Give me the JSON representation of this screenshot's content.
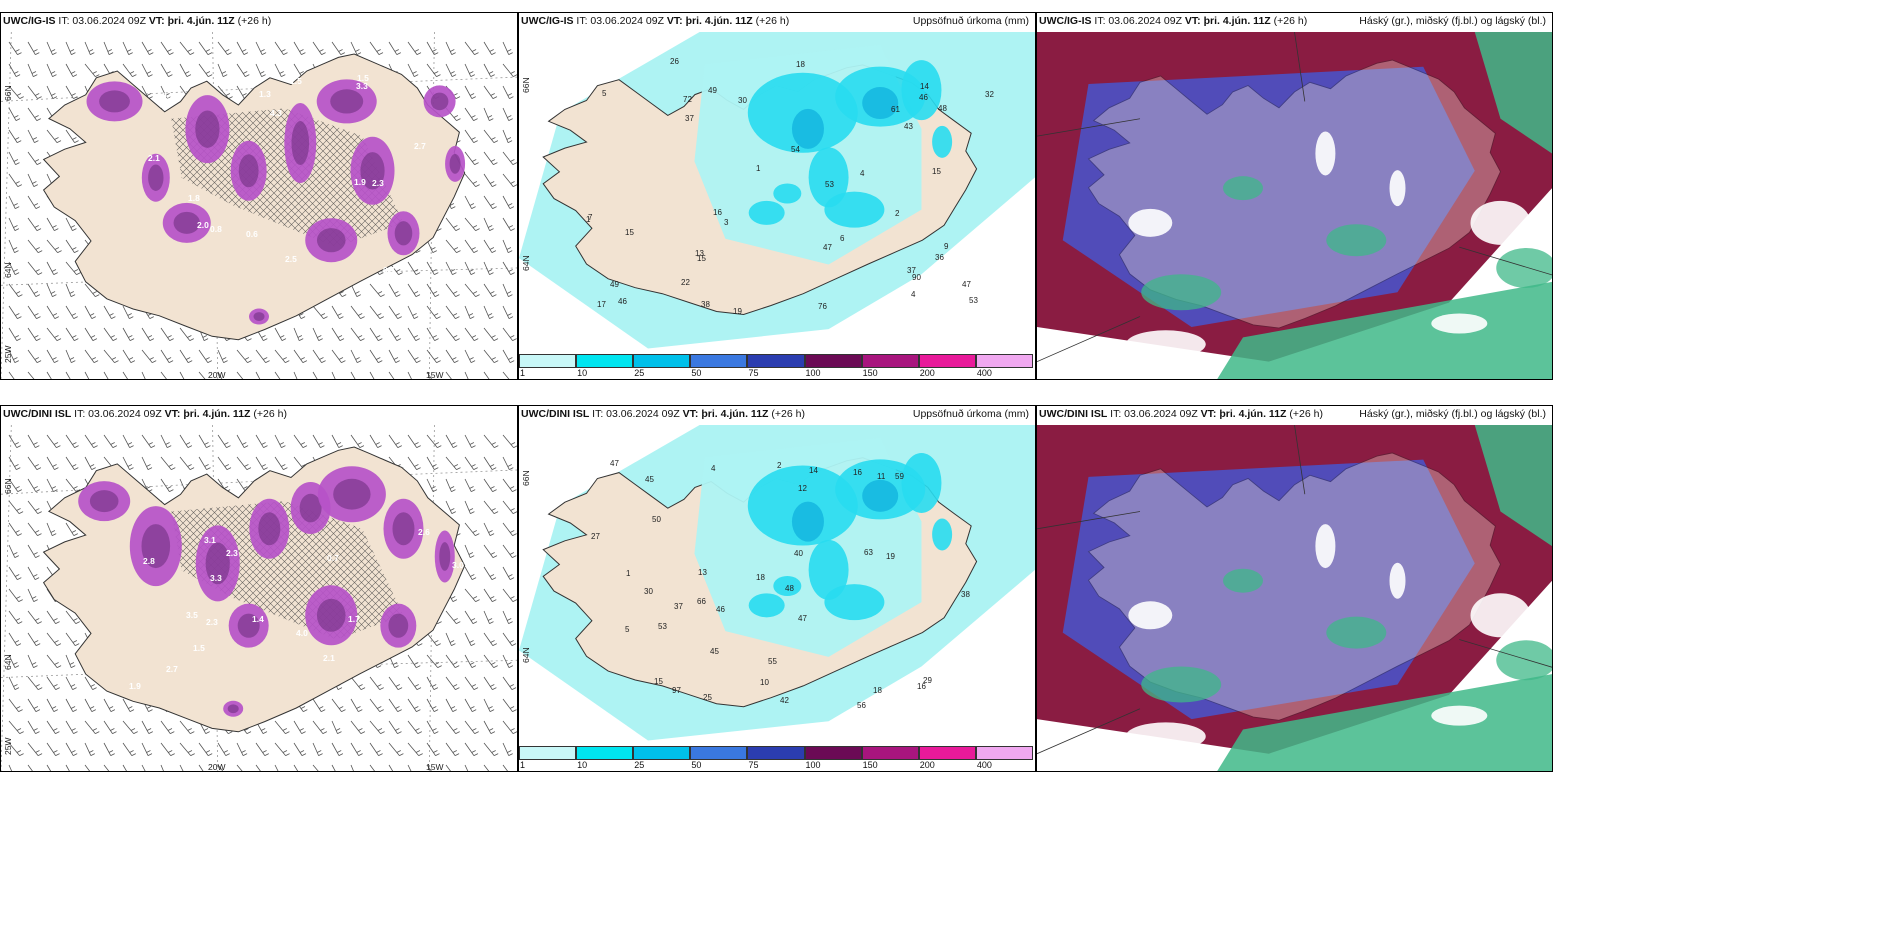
{
  "panels": [
    {
      "model": "UWC/IG-IS",
      "it": "IT: 03.06.2024 09Z",
      "vt_label": "VT:",
      "vt": "þri. 4.jún. 11Z",
      "lead": "(+26 h)",
      "right": ""
    },
    {
      "model": "UWC/IG-IS",
      "it": "IT: 03.06.2024 09Z",
      "vt_label": "VT:",
      "vt": "þri. 4.jún. 11Z",
      "lead": "(+26 h)",
      "right": "Uppsöfnuð úrkoma (mm)"
    },
    {
      "model": "UWC/IG-IS",
      "it": "IT: 03.06.2024 09Z",
      "vt_label": "VT:",
      "vt": "þri. 4.jún. 11Z",
      "lead": "(+26 h)",
      "right": "Háský (gr.), miðský (fj.bl.) og lágský (bl.)"
    },
    {
      "model": "UWC/DINI ISL",
      "it": "IT: 03.06.2024 09Z",
      "vt_label": "VT:",
      "vt": "þri. 4.jún. 11Z",
      "lead": "(+26 h)",
      "right": ""
    },
    {
      "model": "UWC/DINI ISL",
      "it": "IT: 03.06.2024 09Z",
      "vt_label": "VT:",
      "vt": "þri. 4.jún. 11Z",
      "lead": "(+26 h)",
      "right": "Uppsöfnuð úrkoma (mm)"
    },
    {
      "model": "UWC/DINI ISL",
      "it": "IT: 03.06.2024 09Z",
      "vt_label": "VT:",
      "vt": "þri. 4.jún. 11Z",
      "lead": "(+26 h)",
      "right": "Háský (gr.), miðský (fj.bl.) og lágský (bl.)"
    }
  ],
  "axes": {
    "lat66": "66N",
    "lat64": "64N",
    "lon25": "25W",
    "lon20": "20W",
    "lon15": "15W"
  },
  "precip_colorbar": {
    "ticks": [
      "1",
      "10",
      "25",
      "50",
      "75",
      "100",
      "150",
      "200",
      "400"
    ],
    "colors": [
      "#c8f7f7",
      "#00e5f0",
      "#00c0ea",
      "#3a78e0",
      "#2b3db0",
      "#6b0a55",
      "#a8157e",
      "#e81a9a",
      "#f0a8f0"
    ]
  },
  "colors": {
    "land": "#f2e3d2",
    "precip_light": "#aef3f3",
    "precip_mid": "#28dcef",
    "precip_strong": "#16b8e0",
    "wind_purple": "#b652c8",
    "wind_dark": "#6a2c7a",
    "high_cloud": "#3fb888",
    "mid_cloud": "#4e4fc0",
    "low_cloud": "#8a1c42"
  },
  "precip_labels_top": [
    "53",
    "72",
    "90",
    "76",
    "61",
    "54",
    "46",
    "49",
    "47",
    "38",
    "32",
    "49",
    "22",
    "26",
    "18",
    "15",
    "37",
    "30",
    "48",
    "17",
    "13",
    "46",
    "37",
    "47",
    "16",
    "19",
    "15",
    "43",
    "36",
    "53",
    "15",
    "14",
    "9",
    "5",
    "7",
    "4",
    "2",
    "3",
    "1",
    "6",
    "4",
    "1"
  ],
  "precip_labels_bot": [
    "50",
    "48",
    "55",
    "53",
    "66",
    "59",
    "63",
    "47",
    "56",
    "45",
    "47",
    "38",
    "30",
    "40",
    "29",
    "45",
    "16",
    "18",
    "37",
    "42",
    "19",
    "27",
    "16",
    "13",
    "18",
    "11",
    "97",
    "12",
    "10",
    "5",
    "2",
    "1",
    "4",
    "46",
    "25",
    "15",
    "14"
  ],
  "wind_labels_top": [
    "3.3",
    "1.3",
    "2.3",
    "4.3",
    "1.8",
    "1.4",
    "1.9",
    "0.7",
    "0.8",
    "2.0",
    "2.5",
    "1.5",
    "2.7",
    "0.4",
    "0.6",
    "2.1",
    "1.5"
  ],
  "wind_labels_bot": [
    "3.5",
    "3.3",
    "2.3",
    "4.0",
    "3.0",
    "1.9",
    "0.7",
    "2.7",
    "1.7",
    "2.1",
    "1.4",
    "3.1",
    "2.6",
    "2.8",
    "1.5",
    "2.3"
  ]
}
